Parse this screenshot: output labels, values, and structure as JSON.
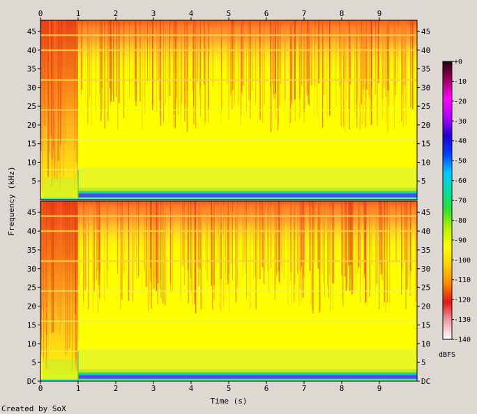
{
  "chart_data": {
    "type": "heatmap",
    "title": "",
    "xlabel": "Time (s)",
    "ylabel": "Frequency (kHz)",
    "footer": "Created by SoX",
    "x_ticks": [
      "0",
      "1",
      "2",
      "3",
      "4",
      "5",
      "6",
      "7",
      "8",
      "9"
    ],
    "xlim": [
      0,
      10
    ],
    "channels": [
      {
        "y_ticks": [
          {
            "v": 5,
            "label": "5"
          },
          {
            "v": 10,
            "label": "10"
          },
          {
            "v": 15,
            "label": "15"
          },
          {
            "v": 20,
            "label": "20"
          },
          {
            "v": 25,
            "label": "25"
          },
          {
            "v": 30,
            "label": "30"
          },
          {
            "v": 35,
            "label": "35"
          },
          {
            "v": 40,
            "label": "40"
          },
          {
            "v": 45,
            "label": "45"
          }
        ]
      },
      {
        "y_ticks": [
          {
            "v": 0,
            "label": "DC"
          },
          {
            "v": 5,
            "label": "5"
          },
          {
            "v": 10,
            "label": "10"
          },
          {
            "v": 15,
            "label": "15"
          },
          {
            "v": 20,
            "label": "20"
          },
          {
            "v": 25,
            "label": "25"
          },
          {
            "v": 30,
            "label": "30"
          },
          {
            "v": 35,
            "label": "35"
          },
          {
            "v": 40,
            "label": "40"
          },
          {
            "v": 45,
            "label": "45"
          }
        ]
      }
    ],
    "ylim": [
      0,
      48
    ],
    "colorbar": {
      "label": "dBFS",
      "ticks": [
        "+0",
        "-10",
        "-20",
        "-30",
        "-40",
        "-50",
        "-60",
        "-70",
        "-80",
        "-90",
        "-100",
        "-110",
        "-120",
        "-130",
        "-140"
      ],
      "range": [
        -140,
        0
      ],
      "colors": [
        "#ffffff",
        "#f0a0a8",
        "#e01818",
        "#ff8800",
        "#ffd000",
        "#ffff00",
        "#b8f000",
        "#30e030",
        "#00e0a0",
        "#00c8ff",
        "#0040ff",
        "#2000d0",
        "#b000ff",
        "#ff00ff",
        "#a00060",
        "#200010"
      ]
    },
    "features": {
      "onset_time_s": 1.0,
      "strong_low_band_khz": [
        0.5,
        2.0
      ],
      "harmonic_lines_khz": [
        8,
        16,
        24,
        32,
        40,
        44
      ]
    }
  }
}
